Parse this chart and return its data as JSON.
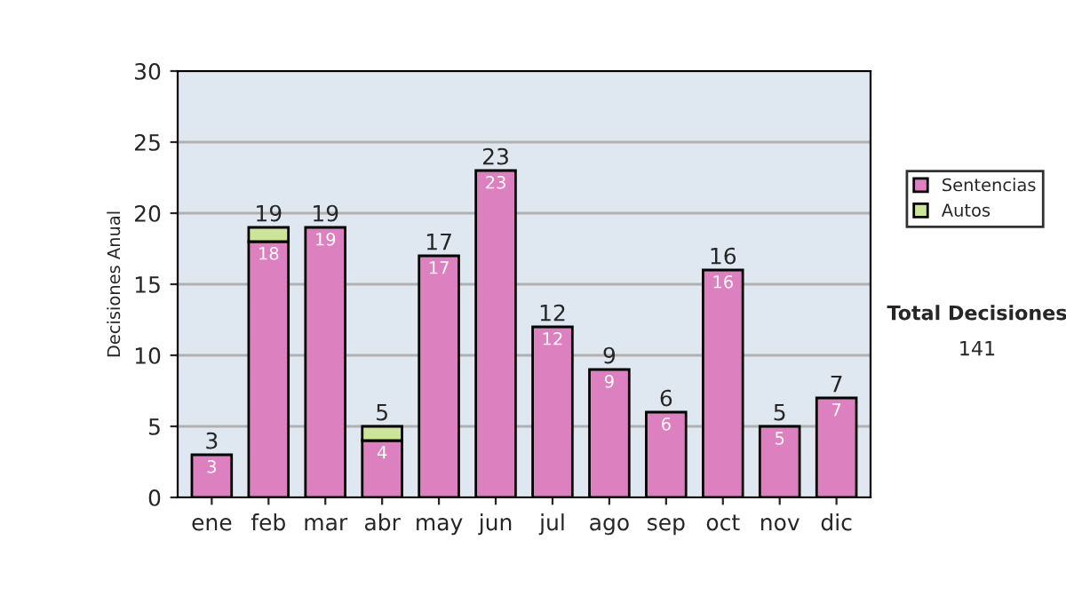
{
  "chart_data": {
    "type": "bar",
    "stacked": true,
    "ylabel": "Decisiones Anual",
    "categories": [
      "ene",
      "feb",
      "mar",
      "abr",
      "may",
      "jun",
      "jul",
      "ago",
      "sep",
      "oct",
      "nov",
      "dic"
    ],
    "series": [
      {
        "name": "Sentencias",
        "color": "#dd80c0",
        "values": [
          3,
          18,
          19,
          4,
          17,
          23,
          12,
          9,
          6,
          16,
          5,
          7
        ],
        "value_labels": [
          "3",
          "18",
          "19",
          "4",
          "17",
          "23",
          "12",
          "9",
          "6",
          "16",
          "5",
          "7"
        ]
      },
      {
        "name": "Autos",
        "color": "#cce599",
        "values": [
          0,
          1,
          0,
          1,
          0,
          0,
          0,
          0,
          0,
          0,
          0,
          0
        ]
      }
    ],
    "totals": [
      "3",
      "19",
      "19",
      "5",
      "17",
      "23",
      "12",
      "9",
      "6",
      "16",
      "5",
      "7"
    ],
    "ylim": [
      0,
      30
    ],
    "yticks": [
      0,
      5,
      10,
      15,
      20,
      25,
      30
    ],
    "grid": "y",
    "legend": "right",
    "annotations": [
      "Total Decisiones",
      "141"
    ]
  }
}
